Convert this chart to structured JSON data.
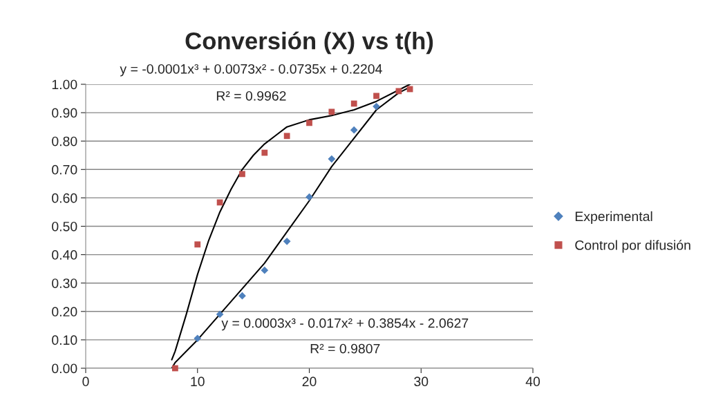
{
  "chart_data": {
    "type": "scatter",
    "title": "Conversión (X) vs t(h)",
    "series": [
      {
        "name": "Experimental",
        "color": "#4f81bd",
        "marker": "diamond",
        "x": [
          10,
          12,
          14,
          16,
          18,
          20,
          22,
          24,
          26
        ],
        "values": [
          0.105,
          0.19,
          0.255,
          0.345,
          0.447,
          0.603,
          0.737,
          0.839,
          0.922
        ]
      },
      {
        "name": "Control por difusión",
        "color": "#c0504d",
        "marker": "square",
        "x": [
          8,
          10,
          12,
          14,
          16,
          18,
          20,
          22,
          24,
          26,
          28,
          29
        ],
        "values": [
          0.0,
          0.436,
          0.584,
          0.684,
          0.759,
          0.818,
          0.864,
          0.903,
          0.932,
          0.959,
          0.976,
          0.983
        ]
      },
      {
        "type": "line",
        "color": "#000000",
        "marker": "none",
        "x": [
          7.7,
          8,
          9,
          10,
          11,
          12,
          13,
          14,
          15,
          16,
          17,
          18,
          20,
          22,
          24,
          26,
          28,
          29
        ],
        "values": [
          0.03,
          0.06,
          0.19,
          0.33,
          0.45,
          0.55,
          0.63,
          0.7,
          0.75,
          0.79,
          0.82,
          0.85,
          0.875,
          0.89,
          0.91,
          0.94,
          0.98,
          1.0
        ]
      },
      {
        "type": "line",
        "color": "#000000",
        "marker": "none",
        "x": [
          7.7,
          8,
          10,
          12,
          14,
          16,
          18,
          20,
          22,
          24,
          26,
          28,
          29
        ],
        "values": [
          0.0,
          0.02,
          0.1,
          0.19,
          0.28,
          0.37,
          0.48,
          0.59,
          0.71,
          0.81,
          0.91,
          0.97,
          0.99
        ]
      }
    ],
    "xlim": [
      0,
      40
    ],
    "xticks": [
      0,
      10,
      20,
      30,
      40
    ],
    "ylim": [
      0,
      1
    ],
    "yticks": [
      {
        "value": 0,
        "label": "0.00"
      },
      {
        "value": 0.1,
        "label": "0.10"
      },
      {
        "value": 0.2,
        "label": "0.20"
      },
      {
        "value": 0.3,
        "label": "0.30"
      },
      {
        "value": 0.4,
        "label": "0.40"
      },
      {
        "value": 0.5,
        "label": "0.50"
      },
      {
        "value": 0.6,
        "label": "0.60"
      },
      {
        "value": 0.7,
        "label": "0.70"
      },
      {
        "value": 0.8,
        "label": "0.80"
      },
      {
        "value": 0.9,
        "label": "0.90"
      },
      {
        "value": 1,
        "label": "1.00"
      }
    ],
    "annotations": [
      "y = -0.0001x³ + 0.0073x² - 0.0735x + 0.2204",
      "R² = 0.9962",
      "y = 0.0003x³ - 0.017x² + 0.3854x - 2.0627",
      "R² = 0.9807"
    ],
    "grid": "y",
    "legend": "right"
  }
}
